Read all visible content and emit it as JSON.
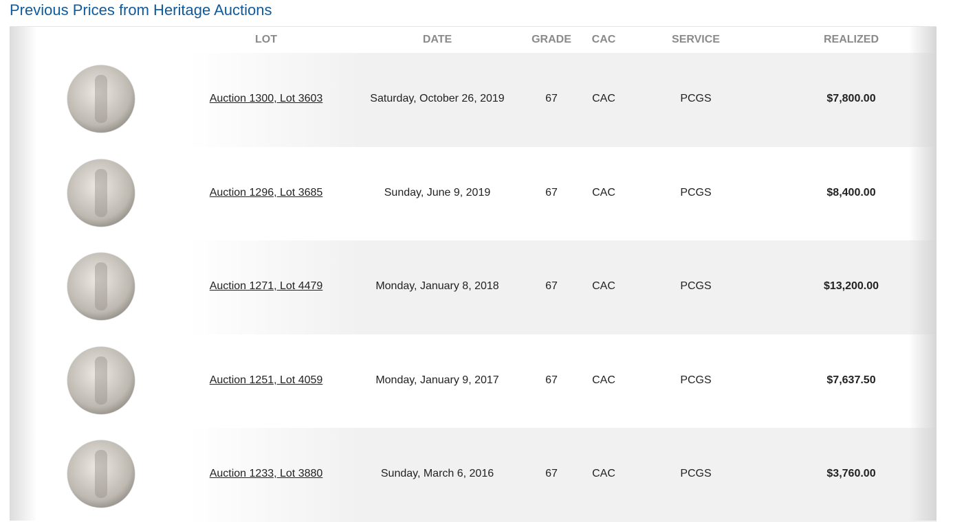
{
  "title": "Previous Prices from Heritage Auctions",
  "headers": {
    "lot": "LOT",
    "date": "DATE",
    "grade": "GRADE",
    "cac": "CAC",
    "service": "SERVICE",
    "realized": "REALIZED"
  },
  "rows": [
    {
      "lot": "Auction 1300, Lot 3603",
      "date": "Saturday, October 26, 2019",
      "grade": "67",
      "cac": "CAC",
      "service": "PCGS",
      "realized": "$7,800.00"
    },
    {
      "lot": "Auction 1296, Lot 3685",
      "date": "Sunday, June 9, 2019",
      "grade": "67",
      "cac": "CAC",
      "service": "PCGS",
      "realized": "$8,400.00"
    },
    {
      "lot": "Auction 1271, Lot 4479",
      "date": "Monday, January 8, 2018",
      "grade": "67",
      "cac": "CAC",
      "service": "PCGS",
      "realized": "$13,200.00"
    },
    {
      "lot": "Auction 1251, Lot 4059",
      "date": "Monday, January 9, 2017",
      "grade": "67",
      "cac": "CAC",
      "service": "PCGS",
      "realized": "$7,637.50"
    },
    {
      "lot": "Auction 1233, Lot 3880",
      "date": "Sunday, March 6, 2016",
      "grade": "67",
      "cac": "CAC",
      "service": "PCGS",
      "realized": "$3,760.00"
    }
  ]
}
